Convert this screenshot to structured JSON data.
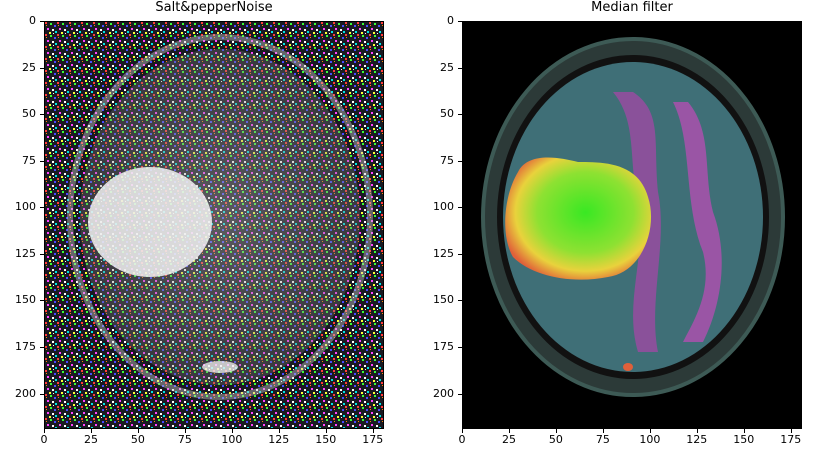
{
  "figures": [
    {
      "id": "noisy",
      "title": "Salt&pepperNoise",
      "x_ticks": [
        "0",
        "25",
        "50",
        "75",
        "100",
        "125",
        "150",
        "175"
      ],
      "y_ticks": [
        "0",
        "25",
        "50",
        "75",
        "100",
        "125",
        "150",
        "175",
        "200"
      ],
      "image_description": "axial brain MRI with colored salt-and-pepper noise"
    },
    {
      "id": "filtered",
      "title": "Median filter",
      "x_ticks": [
        "0",
        "25",
        "50",
        "75",
        "100",
        "125",
        "150",
        "175"
      ],
      "y_ticks": [
        "0",
        "25",
        "50",
        "75",
        "100",
        "125",
        "150",
        "175",
        "200"
      ],
      "image_description": "median-filtered axial brain MRI, false color, tumor highlighted in yellow-green"
    }
  ],
  "chart_data": [
    {
      "type": "heatmap",
      "title": "Salt&pepperNoise",
      "xlim": [
        0,
        181
      ],
      "ylim": [
        219,
        0
      ],
      "x_ticks": [
        0,
        25,
        50,
        75,
        100,
        125,
        150,
        175
      ],
      "y_ticks": [
        0,
        25,
        50,
        75,
        100,
        125,
        150,
        175,
        200
      ]
    },
    {
      "type": "heatmap",
      "title": "Median filter",
      "xlim": [
        0,
        181
      ],
      "ylim": [
        219,
        0
      ],
      "x_ticks": [
        0,
        25,
        50,
        75,
        100,
        125,
        150,
        175
      ],
      "y_ticks": [
        0,
        25,
        50,
        75,
        100,
        125,
        150,
        175,
        200
      ]
    }
  ],
  "colors": {
    "background": "#ffffff",
    "axis": "#000000",
    "tumor_core": "#66e62a",
    "tumor_edge": "#f0d23a",
    "tissue": "#3f6f77",
    "white_matter": "#b24fb0"
  }
}
